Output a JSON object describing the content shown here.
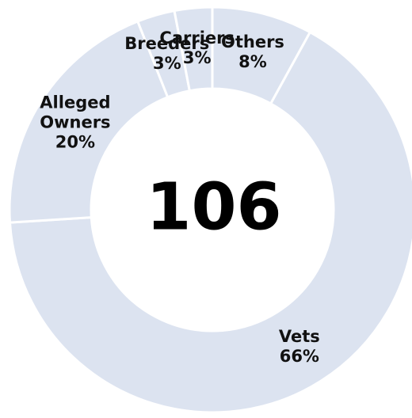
{
  "chart_data": {
    "type": "donut",
    "categories": [
      "Others",
      "Vets",
      "Alleged Owners",
      "Breeders",
      "Carriers"
    ],
    "values": [
      8,
      66,
      20,
      3,
      3
    ],
    "value_labels": [
      "8%",
      "66%",
      "20%",
      "3%",
      "3%"
    ],
    "color": "#dce3f0",
    "total": 106
  }
}
